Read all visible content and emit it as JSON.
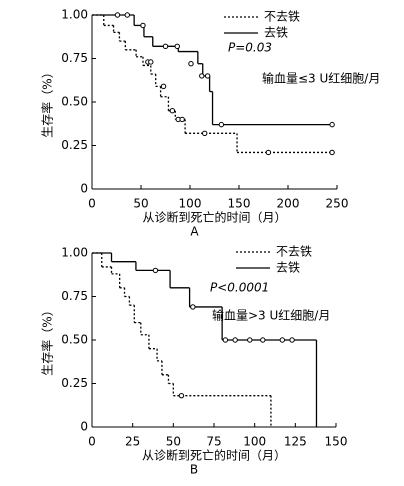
{
  "chart_data": [
    {
      "type": "line",
      "step": true,
      "panel_label": "A",
      "x_label": "从诊断到死亡的时间（月）",
      "y_label": "生存率（%）",
      "annotations": [
        "P=0.03",
        "输血量≤3 U红细胞/月"
      ],
      "xlim": [
        0,
        250
      ],
      "xticks": [
        0,
        50,
        100,
        150,
        200,
        250
      ],
      "ylim": [
        0,
        1
      ],
      "yticks": [
        0,
        0.25,
        {
          "value": 0.5,
          "label": "0.50"
        },
        0.75,
        {
          "value": 1,
          "label": "1.00"
        }
      ],
      "series": [
        {
          "name": "不去铁",
          "color": "#000000",
          "line_style": "dotted",
          "x": [
            0,
            12,
            22,
            28,
            34,
            45,
            52,
            60,
            65,
            70,
            78,
            85,
            95,
            148
          ],
          "values": [
            1,
            0.94,
            0.9,
            0.85,
            0.8,
            0.76,
            0.71,
            0.66,
            0.59,
            0.53,
            0.45,
            0.4,
            0.32,
            0.21
          ],
          "censored": {
            "x": [
              57,
              60,
              73,
              82,
              88,
              92,
              115,
              180,
              245
            ],
            "values": [
              0.73,
              0.73,
              0.59,
              0.45,
              0.4,
              0.4,
              0.32,
              0.21,
              0.21
            ]
          }
        },
        {
          "name": "去铁",
          "color": "#000000",
          "line_style": "solid",
          "x": [
            0,
            43,
            53,
            62,
            88,
            108,
            113,
            120,
            123
          ],
          "values": [
            1,
            0.94,
            0.875,
            0.82,
            0.79,
            0.72,
            0.65,
            0.56,
            0.37
          ],
          "censored": {
            "x": [
              26,
              36,
              52,
              75,
              87,
              101,
              112,
              118,
              132,
              245
            ],
            "values": [
              1,
              1,
              0.94,
              0.82,
              0.82,
              0.72,
              0.65,
              0.65,
              0.37,
              0.37
            ]
          }
        }
      ]
    },
    {
      "type": "line",
      "step": true,
      "panel_label": "B",
      "x_label": "从诊断到死亡的时间（月）",
      "y_label": "生存率（%）",
      "annotations": [
        "P<0.0001",
        "输血量>3 U红细胞/月"
      ],
      "xlim": [
        0,
        150
      ],
      "xticks": [
        0,
        25,
        50,
        75,
        100,
        125,
        150
      ],
      "ylim": [
        0,
        1
      ],
      "yticks": [
        0,
        0.25,
        {
          "value": 0.5,
          "label": "0.50"
        },
        0.75,
        {
          "value": 1,
          "label": "1.00"
        }
      ],
      "series": [
        {
          "name": "不去铁",
          "color": "#000000",
          "line_style": "dotted",
          "x": [
            0,
            6,
            12,
            17,
            20,
            23,
            26,
            30,
            35,
            40,
            43,
            47,
            50,
            110
          ],
          "values": [
            1,
            0.92,
            0.88,
            0.8,
            0.75,
            0.7,
            0.6,
            0.53,
            0.45,
            0.38,
            0.3,
            0.25,
            0.18,
            0
          ],
          "censored": {
            "x": [
              55
            ],
            "values": [
              0.18
            ]
          }
        },
        {
          "name": "去铁",
          "color": "#000000",
          "line_style": "solid",
          "x": [
            0,
            12,
            27,
            48,
            60,
            80,
            138
          ],
          "values": [
            1,
            0.95,
            0.9,
            0.8,
            0.69,
            0.5,
            0
          ],
          "censored": {
            "x": [
              39,
              62,
              82,
              88,
              97,
              105,
              117,
              123
            ],
            "values": [
              0.9,
              0.69,
              0.5,
              0.5,
              0.5,
              0.5,
              0.5,
              0.5
            ]
          }
        }
      ]
    }
  ]
}
